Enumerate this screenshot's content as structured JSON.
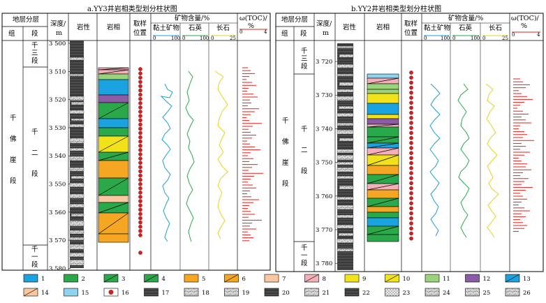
{
  "titles": {
    "a": "a.YY3井岩相类型划分柱状图",
    "b": "b.YY2井岩相类型划分柱状图"
  },
  "headers": {
    "strata": "地层分层",
    "group": "组",
    "member": "段",
    "depth": "深度/m",
    "depth_l1": "深度/",
    "depth_l2": "m",
    "lithology": "岩性",
    "lithofacies": "岩相",
    "sampling_l1": "取样",
    "sampling_l2": "位置",
    "minerals": "矿物含量/%",
    "clay": "黏土矿物",
    "quartz": "石英",
    "feldspar": "长石",
    "toc_l1": "ω(TOC)/",
    "toc_l2": "%"
  },
  "units": {
    "group": "千佛崖段",
    "m3": [
      "千",
      "三",
      "段"
    ],
    "m2": [
      "千",
      "二",
      "段"
    ],
    "m1": [
      "千",
      "一",
      "段"
    ]
  },
  "group_chars": [
    "千",
    "佛",
    "崖",
    "段"
  ],
  "scales": {
    "clay_max": "100",
    "quartz_max": "100",
    "feldspar_max": "25",
    "toc_max": "4",
    "zero": "0"
  },
  "colors": {
    "clay": "#1a9fd4",
    "quartz": "#2aa84a",
    "feldspar": "#e8d21a",
    "toc": "#e0211d",
    "sample": "#d42020"
  },
  "yy3_depths": [
    "3 500",
    "3 510",
    "3 520",
    "3 530",
    "3 540",
    "3 550",
    "3 560",
    "3 570",
    "3 580"
  ],
  "yy2_depths": [
    "3 720",
    "3 730",
    "3 740",
    "3 750",
    "3 760",
    "3 770",
    "3 780"
  ],
  "legend": [
    "1",
    "2",
    "3",
    "4",
    "5",
    "6",
    "7",
    "8",
    "9",
    "10",
    "11",
    "12",
    "13",
    "14",
    "15",
    "16",
    "17",
    "18",
    "19",
    "20",
    "21",
    "22",
    "23",
    "24",
    "25",
    "26"
  ]
}
